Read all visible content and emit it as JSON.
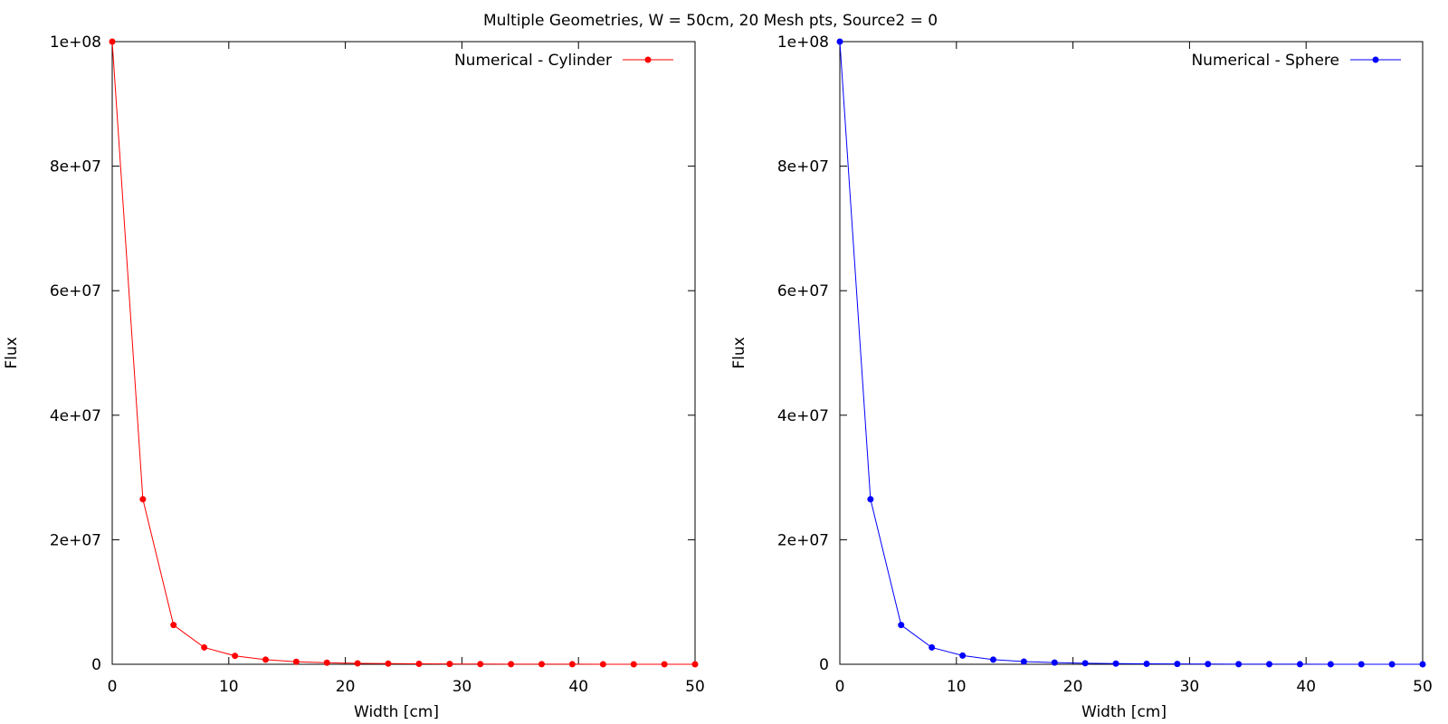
{
  "figure": {
    "title": "Multiple Geometries, W = 50cm, 20 Mesh pts, Source2 = 0"
  },
  "chart_data": [
    {
      "type": "line",
      "xlabel": "Width [cm]",
      "ylabel": "Flux",
      "xlim": [
        0,
        50
      ],
      "ylim": [
        0,
        100000000
      ],
      "x_ticks": [
        {
          "value": 0,
          "label": "0"
        },
        {
          "value": 10,
          "label": "10"
        },
        {
          "value": 20,
          "label": "20"
        },
        {
          "value": 30,
          "label": "30"
        },
        {
          "value": 40,
          "label": "40"
        },
        {
          "value": 50,
          "label": "50"
        }
      ],
      "y_ticks": [
        {
          "value": 0,
          "label": "0"
        },
        {
          "value": 20000000,
          "label": "2e+07"
        },
        {
          "value": 40000000,
          "label": "4e+07"
        },
        {
          "value": 60000000,
          "label": "6e+07"
        },
        {
          "value": 80000000,
          "label": "8e+07"
        },
        {
          "value": 100000000,
          "label": "1e+08"
        }
      ],
      "grid": false,
      "legend_position": "top-right",
      "series": [
        {
          "name": "Numerical - Cylinder",
          "color": "#ff0000",
          "marker": "circle",
          "x": [
            0,
            2.63,
            5.26,
            7.89,
            10.53,
            13.16,
            15.79,
            18.42,
            21.05,
            23.68,
            26.32,
            28.95,
            31.58,
            34.21,
            36.84,
            39.47,
            42.11,
            44.74,
            47.37,
            50
          ],
          "y": [
            100000000,
            26500000,
            6300000,
            2700000,
            1350000,
            750000,
            400000,
            250000,
            150000,
            100000,
            70000,
            50000,
            30000,
            20000,
            15000,
            10000,
            7000,
            5000,
            2000,
            0
          ]
        }
      ]
    },
    {
      "type": "line",
      "xlabel": "Width [cm]",
      "ylabel": "Flux",
      "xlim": [
        0,
        50
      ],
      "ylim": [
        0,
        100000000
      ],
      "x_ticks": [
        {
          "value": 0,
          "label": "0"
        },
        {
          "value": 10,
          "label": "10"
        },
        {
          "value": 20,
          "label": "20"
        },
        {
          "value": 30,
          "label": "30"
        },
        {
          "value": 40,
          "label": "40"
        },
        {
          "value": 50,
          "label": "50"
        }
      ],
      "y_ticks": [
        {
          "value": 0,
          "label": "0"
        },
        {
          "value": 20000000,
          "label": "2e+07"
        },
        {
          "value": 40000000,
          "label": "4e+07"
        },
        {
          "value": 60000000,
          "label": "6e+07"
        },
        {
          "value": 80000000,
          "label": "8e+07"
        },
        {
          "value": 100000000,
          "label": "1e+08"
        }
      ],
      "grid": false,
      "legend_position": "top-right",
      "series": [
        {
          "name": "Numerical - Sphere",
          "color": "#0000ff",
          "marker": "circle",
          "x": [
            0,
            2.63,
            5.26,
            7.89,
            10.53,
            13.16,
            15.79,
            18.42,
            21.05,
            23.68,
            26.32,
            28.95,
            31.58,
            34.21,
            36.84,
            39.47,
            42.11,
            44.74,
            47.37,
            50
          ],
          "y": [
            100000000,
            26500000,
            6300000,
            2700000,
            1400000,
            750000,
            430000,
            270000,
            170000,
            110000,
            75000,
            50000,
            35000,
            22000,
            15000,
            10000,
            7000,
            4000,
            2000,
            0
          ]
        }
      ]
    }
  ]
}
